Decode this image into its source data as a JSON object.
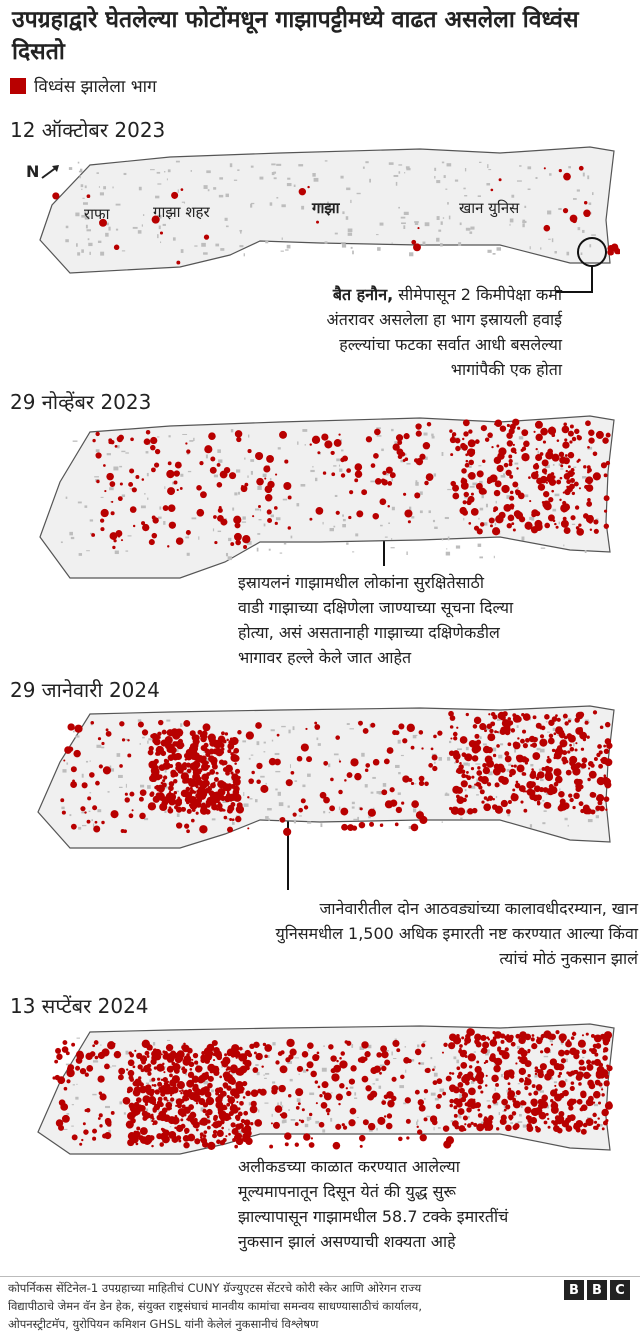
{
  "title": "उपग्रहाद्वारे घेतलेल्या फोटोंमधून गाझापट्टीमध्ये वाढत असलेला विध्वंस दिसतो",
  "legend": {
    "label": "विध्वंस झालेला भाग",
    "color": "#b80000"
  },
  "north_label": "N",
  "panels": [
    {
      "date": "12 ऑक्टोबर 2023",
      "places": {
        "rafah": "राफा",
        "gaza_city": "गाझा शहर",
        "gaza": "गाझा",
        "khan_younis": "खान युनिस"
      },
      "annotation_bold": "बैत हनौन,",
      "annotation_rest_1": " सीमेपासून 2 किमीपेक्षा कमी",
      "annotation_lines": [
        "अंतरावर असलेला हा भाग इस्रायली हवाई",
        "हल्ल्यांचा फटका सर्वात आधी बसलेल्या",
        "भागांपैकी एक होता"
      ]
    },
    {
      "date": "29 नोव्हेंबर 2023",
      "annotation_lines": [
        "इस्रायलनं गाझामधील लोकांना सुरक्षितेसाठी",
        "वाडी गाझाच्या दक्षिणेला जाण्याच्या सूचना दिल्या",
        "होत्या, असं असतानाही गाझाच्या दक्षिणेकडील",
        "भागावर हल्ले केले जात आहेत"
      ]
    },
    {
      "date": "29 जानेवारी 2024",
      "annotation_lines": [
        "जानेवारीतील दोन आठवड्यांच्या कालावधीदरम्यान, खान",
        "युनिसमधील 1,500 अधिक इमारती नष्ट करण्यात आल्या किंवा",
        "त्यांचं मोठं नुकसान झालं"
      ]
    },
    {
      "date": "13 सप्टेंबर 2024",
      "annotation_lines": [
        "अलीकडच्या काळात करण्यात आलेल्या",
        "मूल्यमापनातून दिसून येतं की युद्ध सुरू",
        "झाल्यापासून गाझामधील 58.7 टक्के इमारतींचं",
        "नुकसान झालं असण्याची शक्यता आहे"
      ]
    }
  ],
  "footer_lines": [
    "कोपर्निकस सेंटिनेल-1 उपग्रहाच्या माहितीचं CUNY ग्रॅज्युएटस सेंटरचे कोरी स्केर आणि ओरेगन राज्य",
    "विद्यापीठाचे जेमन वॅन डेन हेक, संयुक्त राष्ट्रसंघाचं मानवीय कामांचा समन्वय साधण्यासाठीचं कार्यालय,",
    "ओपनस्ट्रीटमॅप, युरोपियन कमिशन GHSL यांनी केलेलं नुकसानीचं विश्लेषण"
  ],
  "logo_letters": [
    "B",
    "B",
    "C"
  ]
}
